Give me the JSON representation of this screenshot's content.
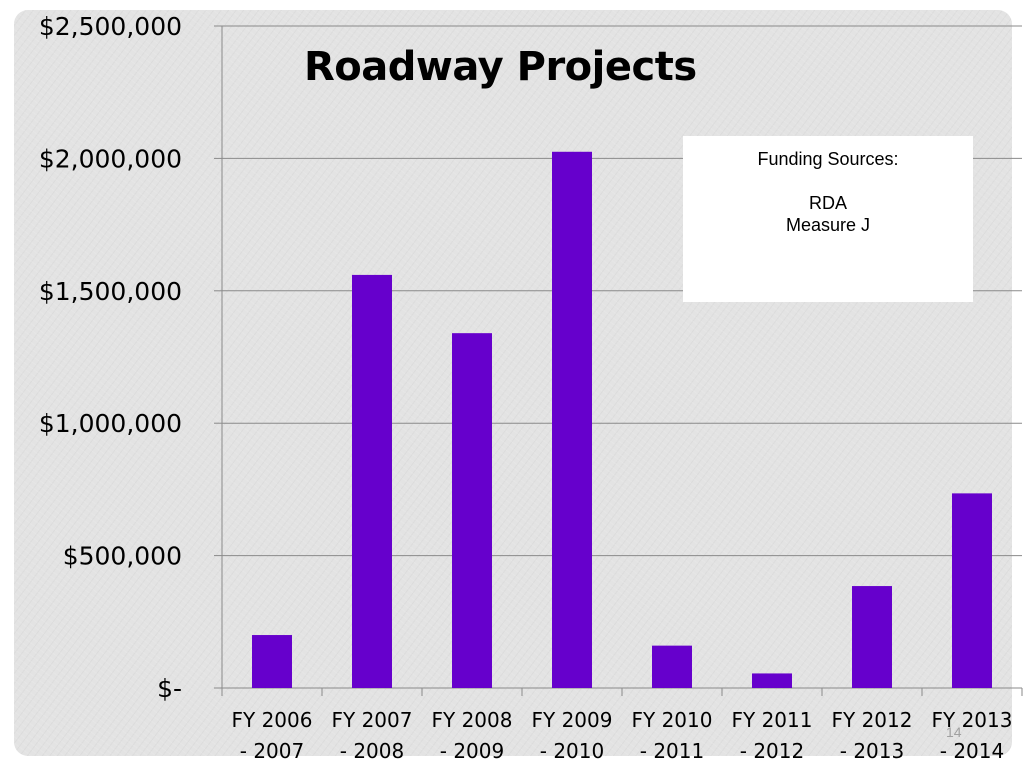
{
  "chart_data": {
    "type": "bar",
    "title": "Roadway Projects",
    "xlabel": "",
    "ylabel": "",
    "categories": [
      [
        "FY 2006",
        "- 2007"
      ],
      [
        "FY 2007",
        "- 2008"
      ],
      [
        "FY 2008",
        "- 2009"
      ],
      [
        "FY 2009",
        "- 2010"
      ],
      [
        "FY 2010",
        "- 2011"
      ],
      [
        "FY 2011",
        "- 2012"
      ],
      [
        "FY 2012",
        "- 2013"
      ],
      [
        "FY 2013",
        "- 2014"
      ]
    ],
    "values": [
      200000,
      1560000,
      1340000,
      2025000,
      160000,
      55000,
      385000,
      735000
    ],
    "ylim": [
      0,
      2500000
    ],
    "yticks": [
      0,
      500000,
      1000000,
      1500000,
      2000000,
      2500000
    ],
    "ytick_labels": [
      "$-",
      "$500,000",
      "$1,000,000",
      "$1,500,000",
      "$2,000,000",
      "$2,500,000"
    ],
    "grid": true,
    "legend": "none",
    "bar_color": "#6600cc"
  },
  "funding_box": {
    "heading": "Funding Sources:",
    "items": [
      "RDA",
      "Measure J"
    ]
  },
  "slide_number": "14"
}
